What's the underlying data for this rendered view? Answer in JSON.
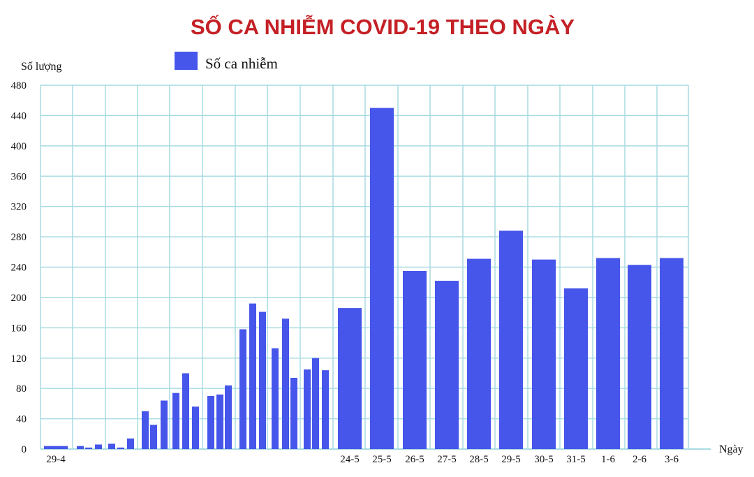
{
  "chart_data": {
    "type": "bar",
    "title": "SỐ CA NHIỄM COVID-19 THEO NGÀY",
    "ylabel": "Số lượng",
    "xlabel": "Ngày",
    "ylim": [
      0,
      480
    ],
    "yticks": [
      0,
      40,
      80,
      120,
      160,
      200,
      240,
      280,
      320,
      360,
      400,
      440,
      480
    ],
    "grid": true,
    "legend_position": "top-left",
    "series": [
      {
        "name": "Số ca nhiễm",
        "color": "#4655ea",
        "bars": [
          {
            "label": "29-4",
            "value": 4
          },
          {
            "label": "",
            "value": 4
          },
          {
            "label": "",
            "value": 2
          },
          {
            "label": "",
            "value": 6
          },
          {
            "label": "",
            "value": 7
          },
          {
            "label": "",
            "value": 2
          },
          {
            "label": "",
            "value": 14
          },
          {
            "label": "",
            "value": 50
          },
          {
            "label": "",
            "value": 32
          },
          {
            "label": "",
            "value": 64
          },
          {
            "label": "",
            "value": 74
          },
          {
            "label": "",
            "value": 100
          },
          {
            "label": "",
            "value": 56
          },
          {
            "label": "",
            "value": 70
          },
          {
            "label": "",
            "value": 72
          },
          {
            "label": "",
            "value": 84
          },
          {
            "label": "",
            "value": 158
          },
          {
            "label": "",
            "value": 192
          },
          {
            "label": "",
            "value": 181
          },
          {
            "label": "",
            "value": 133
          },
          {
            "label": "",
            "value": 172
          },
          {
            "label": "",
            "value": 94
          },
          {
            "label": "",
            "value": 105
          },
          {
            "label": "",
            "value": 120
          },
          {
            "label": "",
            "value": 104
          },
          {
            "label": "24-5",
            "value": 186
          },
          {
            "label": "25-5",
            "value": 450
          },
          {
            "label": "26-5",
            "value": 235
          },
          {
            "label": "27-5",
            "value": 222
          },
          {
            "label": "28-5",
            "value": 251
          },
          {
            "label": "29-5",
            "value": 288
          },
          {
            "label": "30-5",
            "value": 250
          },
          {
            "label": "31-5",
            "value": 212
          },
          {
            "label": "1-6",
            "value": 252
          },
          {
            "label": "2-6",
            "value": 243
          },
          {
            "label": "3-6",
            "value": 252
          }
        ]
      }
    ]
  }
}
